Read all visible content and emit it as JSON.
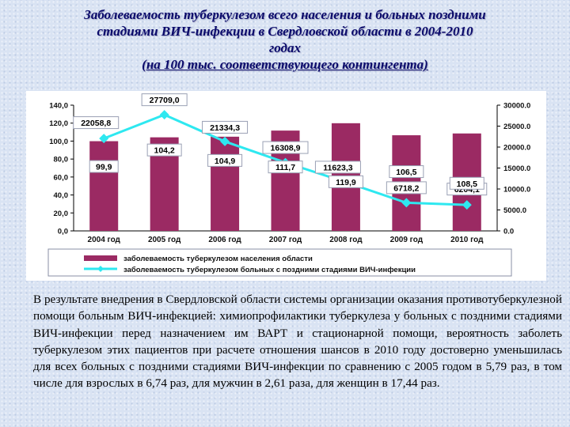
{
  "title": {
    "line1": "Заболеваемость туберкулезом всего населения и больных поздними",
    "line2": "стадиями ВИЧ-инфекции в Свердловской области в 2004-2010",
    "line3": "годах",
    "line4": "(на 100 тыс. соответствующего контингента)"
  },
  "chart_data": {
    "type": "bar+line",
    "categories": [
      "2004 год",
      "2005 год",
      "2006 год",
      "2007 год",
      "2008 год",
      "2009 год",
      "2010 год"
    ],
    "series": [
      {
        "name": "заболеваемость туберкулезом населения области",
        "type": "bar",
        "axis": "left",
        "values": [
          99.9,
          104.2,
          104.9,
          111.7,
          119.9,
          106.5,
          108.5
        ],
        "labels": [
          "99,9",
          "104,2",
          "104,9",
          "111,7",
          "119,9",
          "106,5",
          "108,5"
        ],
        "color": "#9b2a63"
      },
      {
        "name": "заболеваемость туберкулезом больных с поздними стадиями ВИЧ-инфекции",
        "type": "line",
        "axis": "right",
        "values": [
          22058.8,
          27709.0,
          21334.3,
          16308.9,
          11623.3,
          6718.2,
          6204.1
        ],
        "labels": [
          "22058,8",
          "27709,0",
          "21334,3",
          "16308,9",
          "11623,3",
          "6718,2",
          "6204,1"
        ],
        "color": "#2ee8f0"
      }
    ],
    "left_axis": {
      "ylim": [
        0,
        140
      ],
      "ticks": [
        "0,0",
        "20,0",
        "40,0",
        "60,0",
        "80,0",
        "100,0",
        "120,0",
        "140,0"
      ]
    },
    "right_axis": {
      "ylim": [
        0,
        30000
      ],
      "ticks": [
        "0.0",
        "5000.0",
        "10000.0",
        "15000.0",
        "20000.0",
        "25000.0",
        "30000.0"
      ]
    },
    "grid": false,
    "legend_position": "bottom"
  },
  "body_text": "В результате внедрения в Свердловской области системы организации оказания противотуберкулезной помощи больным ВИЧ-инфекцией: химиопрофилактики туберкулеза у больных с поздними стадиями ВИЧ-инфекции перед назначением им ВАРТ и стационарной помощи, вероятность заболеть туберкулезом этих пациентов при расчете отношения шансов в 2010 году достоверно уменьшилась для всех больных с поздними стадиями ВИЧ-инфекции по сравнению с 2005 годом в 5,79 раз, в том числе для взрослых в 6,74 раз, для мужчин в 2,61 раза, для женщин в 17,44 раз."
}
